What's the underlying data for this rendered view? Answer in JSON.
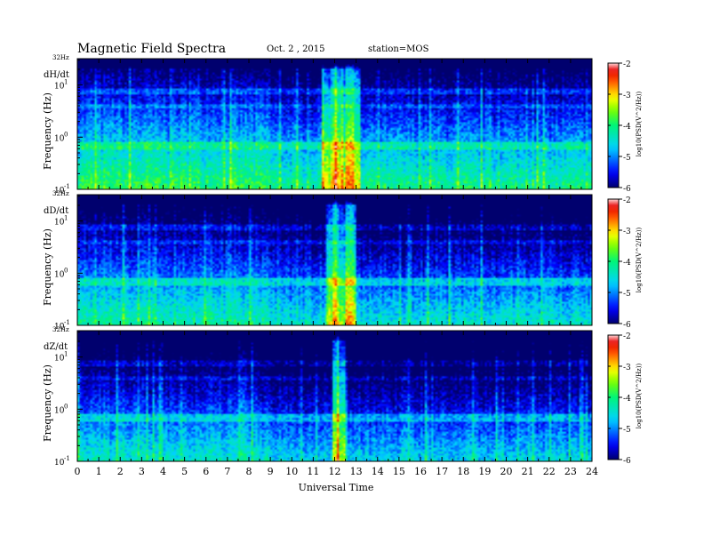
{
  "header": {
    "title": "Magnetic Field Spectra",
    "date": "Oct. 2 , 2015",
    "station": "station=MOS"
  },
  "chart_data": {
    "type": "heatmap",
    "xlabel": "Universal Time",
    "xlim": [
      0,
      24
    ],
    "x_ticks": [
      "0",
      "1",
      "2",
      "3",
      "4",
      "5",
      "6",
      "7",
      "8",
      "9",
      "10",
      "11",
      "12",
      "13",
      "14",
      "15",
      "16",
      "17",
      "18",
      "19",
      "20",
      "21",
      "22",
      "23",
      "24"
    ],
    "ylabel": "Frequency (Hz)",
    "ylim": [
      0.1,
      32
    ],
    "y_scale": "log",
    "top_tick_label": "32Hz",
    "y_ticks": [
      {
        "base": "10",
        "exp": "1"
      },
      {
        "base": "10",
        "exp": "0"
      },
      {
        "base": "10",
        "exp": "-1"
      }
    ],
    "colorbar": {
      "label": "log10(PSD(V^2/Hz))",
      "range": [
        -6,
        -2
      ],
      "ticks": [
        "-2",
        "-3",
        "-4",
        "-5",
        "-6"
      ]
    },
    "panels": [
      {
        "name": "dH/dt",
        "base_level": -4.1,
        "disturbance_ut": [
          11.4,
          13.2
        ]
      },
      {
        "name": "dD/dt",
        "base_level": -4.4,
        "disturbance_ut": [
          11.6,
          13.0
        ]
      },
      {
        "name": "dZ/dt",
        "base_level": -4.6,
        "disturbance_ut": [
          11.9,
          12.5
        ]
      }
    ]
  }
}
